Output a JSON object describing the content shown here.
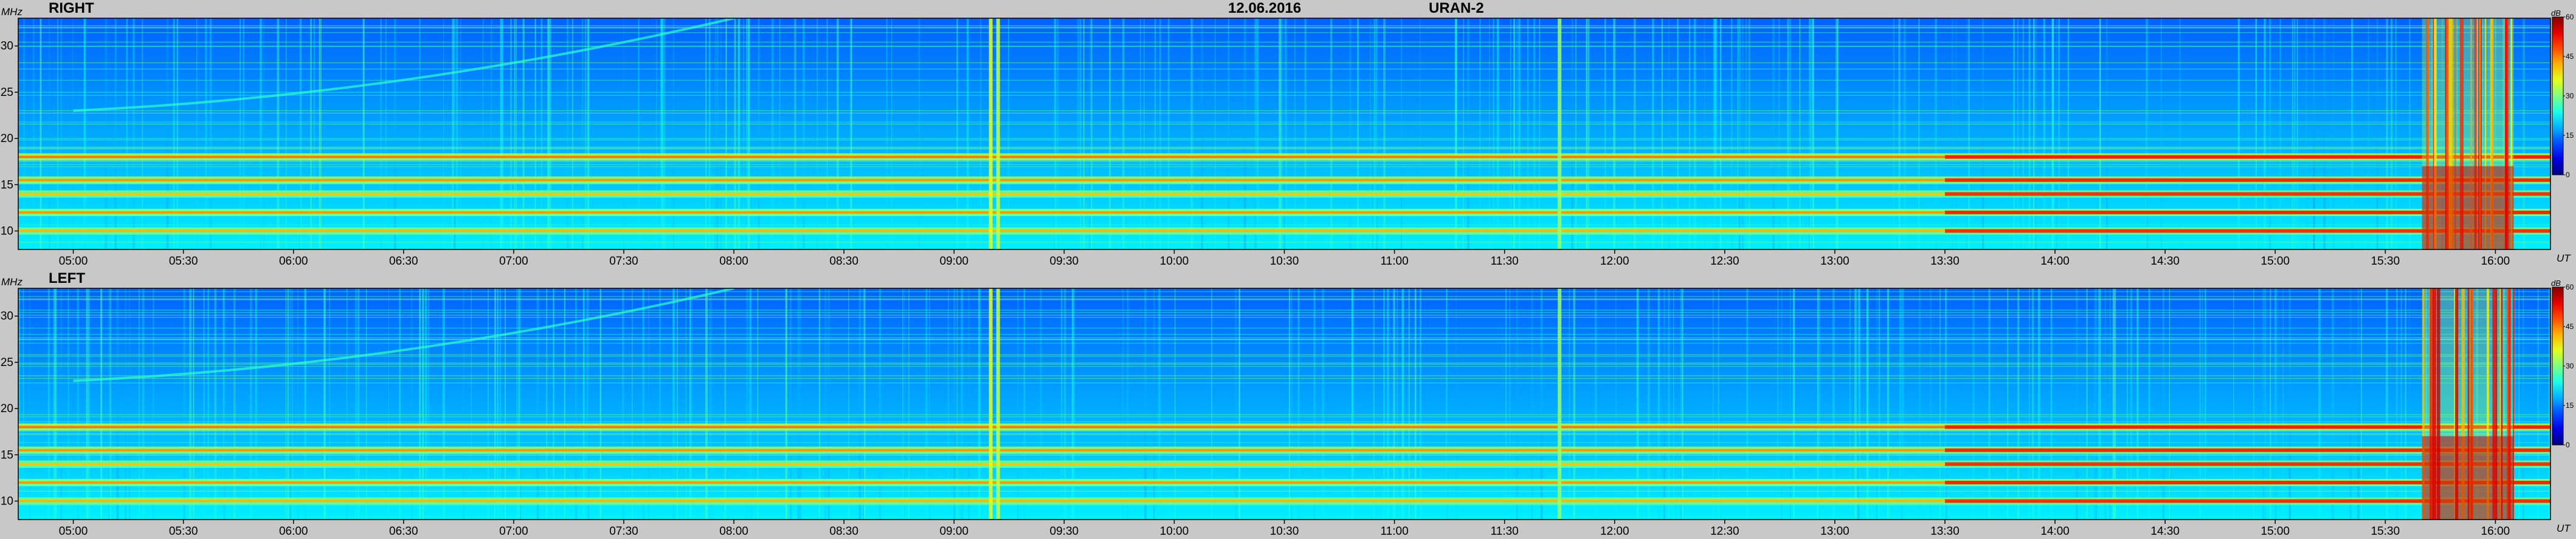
{
  "header": {
    "date": "12.06.2016",
    "instrument": "URAN-2"
  },
  "units": {
    "frequency": "MHz",
    "time": "UT",
    "intensity": "dB"
  },
  "chart_data": [
    {
      "type": "heatmap",
      "title": "RIGHT",
      "xlabel": "UT",
      "ylabel": "MHz",
      "x_range": [
        "04:45",
        "16:15"
      ],
      "y_range": [
        8,
        33
      ],
      "x_ticks": [
        "05:00",
        "05:30",
        "06:00",
        "06:30",
        "07:00",
        "07:30",
        "08:00",
        "08:30",
        "09:00",
        "09:30",
        "10:00",
        "10:30",
        "11:00",
        "11:30",
        "12:00",
        "12:30",
        "13:00",
        "13:30",
        "14:00",
        "14:30",
        "15:00",
        "15:30",
        "16:00"
      ],
      "y_ticks": [
        10,
        15,
        20,
        25,
        30
      ],
      "colorbar": {
        "label": "dB",
        "ticks": [
          0,
          15,
          30,
          45,
          60
        ],
        "colormap": "jet"
      },
      "features": [
        {
          "type": "horizontal_band",
          "freq": 18,
          "level": 40
        },
        {
          "type": "horizontal_band",
          "freq": 15.5,
          "level": 38
        },
        {
          "type": "horizontal_band",
          "freq": 14,
          "level": 35
        },
        {
          "type": "horizontal_band",
          "freq": 12,
          "level": 38
        },
        {
          "type": "horizontal_band",
          "freq": 10,
          "level": 36
        },
        {
          "type": "vertical_burst",
          "time": "09:10",
          "level": 40
        },
        {
          "type": "vertical_burst",
          "time": "09:12",
          "level": 38
        },
        {
          "type": "vertical_burst",
          "time": "11:45",
          "level": 35
        },
        {
          "type": "drifting_feature",
          "from": [
            "05:00",
            23
          ],
          "to": [
            "08:00",
            33
          ]
        },
        {
          "type": "burst_storm",
          "from": "15:40",
          "to": "16:05",
          "level": 55
        }
      ]
    },
    {
      "type": "heatmap",
      "title": "LEFT",
      "xlabel": "UT",
      "ylabel": "MHz",
      "x_range": [
        "04:45",
        "16:15"
      ],
      "y_range": [
        8,
        33
      ],
      "x_ticks": [
        "05:00",
        "05:30",
        "06:00",
        "06:30",
        "07:00",
        "07:30",
        "08:00",
        "08:30",
        "09:00",
        "09:30",
        "10:00",
        "10:30",
        "11:00",
        "11:30",
        "12:00",
        "12:30",
        "13:00",
        "13:30",
        "14:00",
        "14:30",
        "15:00",
        "15:30",
        "16:00"
      ],
      "y_ticks": [
        10,
        15,
        20,
        25,
        30
      ],
      "colorbar": {
        "label": "dB",
        "ticks": [
          0,
          15,
          30,
          45,
          60
        ],
        "colormap": "jet"
      },
      "features": [
        {
          "type": "horizontal_band",
          "freq": 18,
          "level": 40
        },
        {
          "type": "horizontal_band",
          "freq": 15.5,
          "level": 38
        },
        {
          "type": "horizontal_band",
          "freq": 14,
          "level": 35
        },
        {
          "type": "horizontal_band",
          "freq": 12,
          "level": 38
        },
        {
          "type": "horizontal_band",
          "freq": 10,
          "level": 36
        },
        {
          "type": "vertical_burst",
          "time": "09:10",
          "level": 40
        },
        {
          "type": "vertical_burst",
          "time": "09:12",
          "level": 38
        },
        {
          "type": "vertical_burst",
          "time": "11:45",
          "level": 35
        },
        {
          "type": "drifting_feature",
          "from": [
            "05:00",
            23
          ],
          "to": [
            "08:00",
            33
          ]
        },
        {
          "type": "burst_storm",
          "from": "15:40",
          "to": "16:05",
          "level": 55
        }
      ]
    }
  ]
}
